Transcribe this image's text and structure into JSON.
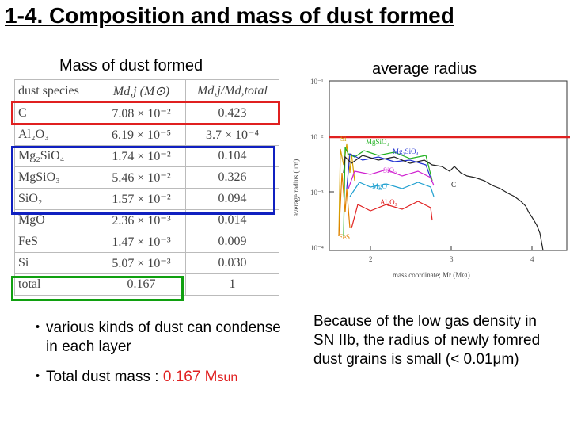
{
  "title": "1-4. Composition and mass of dust formed",
  "left_subtitle": "Mass of dust formed",
  "right_subtitle": "average radius",
  "table": {
    "headers": [
      "dust species",
      "Md,j (M⊙)",
      "Md,j/Md,total"
    ],
    "rows": [
      {
        "species": "C",
        "mass": "7.08 × 10⁻²",
        "frac": "0.423"
      },
      {
        "species": "Al₂O₃",
        "mass": "6.19 × 10⁻⁵",
        "frac": "3.7 × 10⁻⁴"
      },
      {
        "species": "Mg₂SiO₄",
        "mass": "1.74 × 10⁻²",
        "frac": "0.104"
      },
      {
        "species": "MgSiO₃",
        "mass": "5.46 × 10⁻²",
        "frac": "0.326"
      },
      {
        "species": "SiO₂",
        "mass": "1.57 × 10⁻²",
        "frac": "0.094"
      },
      {
        "species": "MgO",
        "mass": "2.36 × 10⁻³",
        "frac": "0.014"
      },
      {
        "species": "FeS",
        "mass": "1.47 × 10⁻³",
        "frac": "0.009"
      },
      {
        "species": "Si",
        "mass": "5.07 × 10⁻³",
        "frac": "0.030"
      },
      {
        "species": "total",
        "mass": "0.167",
        "frac": "1"
      }
    ],
    "highlight_colors": {
      "red": "#e02020",
      "blue": "#1020c0",
      "green": "#10a010"
    }
  },
  "graph": {
    "ylabel": "average radius (μm)",
    "xlabel": "mass coordinate; Mr (M⊙)",
    "ytick_labels": [
      "10⁻¹",
      "10⁻²",
      "10⁻³",
      "10⁻⁴"
    ],
    "xtick_labels": [
      "2",
      "3",
      "4"
    ],
    "curve_labels": [
      "Si",
      "MgSiO₃",
      "Mg₂SiO₄",
      "SiO₂",
      "MgO",
      "C",
      "Al₂O₃",
      "FeS"
    ],
    "threshold_line_color": "#e02020"
  },
  "bullets": {
    "item1": "various kinds of dust can condense in each layer",
    "item2_prefix": "Total dust mass : ",
    "item2_value": "0.167 M",
    "item2_sub": "sun",
    "marker": "・"
  },
  "note": "Because of the low gas density in SN IIb, the radius of newly fomred dust grains is small (< 0.01μm)"
}
